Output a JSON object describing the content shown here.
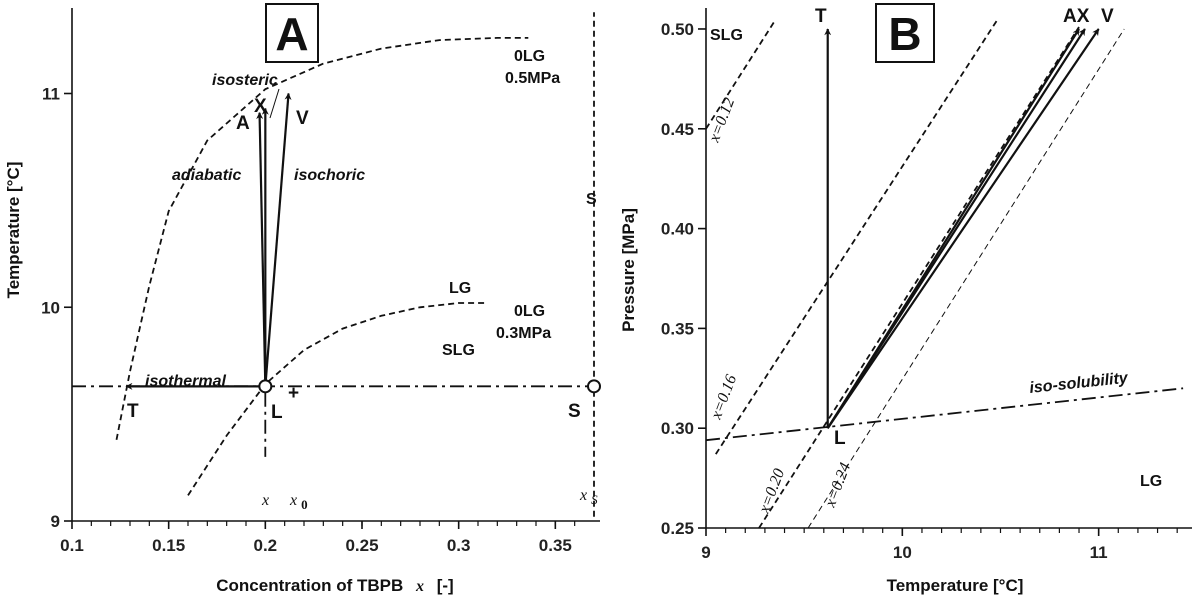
{
  "chart_data": [
    {
      "panel": "A",
      "type": "line",
      "xlabel_main": "Concentration of TBPB",
      "xlabel_var": "x",
      "xlabel_unit": "[-]",
      "ylabel": "Temperature [°C]",
      "xlim": [
        0.1,
        0.37
      ],
      "ylim": [
        9.0,
        11.4
      ],
      "xticks": [
        0.1,
        0.15,
        0.2,
        0.25,
        0.3,
        0.35
      ],
      "xtick_labels": [
        "0.1",
        "0.15",
        "0.2",
        "0.25",
        "0.3",
        "0.35"
      ],
      "yticks": [
        9,
        10,
        11
      ],
      "ytick_labels": [
        "9",
        "10",
        "11"
      ],
      "curves": [
        {
          "name": "0LG 0.5MPa",
          "style": "dashed",
          "x": [
            0.123,
            0.13,
            0.14,
            0.15,
            0.17,
            0.2,
            0.23,
            0.26,
            0.29,
            0.32,
            0.336
          ],
          "y": [
            9.38,
            9.7,
            10.1,
            10.45,
            10.78,
            11.02,
            11.14,
            11.21,
            11.25,
            11.26,
            11.26
          ]
        },
        {
          "name": "0LG 0.3MPa",
          "style": "dashed",
          "x": [
            0.16,
            0.18,
            0.2,
            0.22,
            0.24,
            0.26,
            0.28,
            0.3,
            0.315
          ],
          "y": [
            9.12,
            9.4,
            9.64,
            9.8,
            9.9,
            9.96,
            10.0,
            10.02,
            10.02
          ]
        },
        {
          "name": "xS",
          "style": "dashed",
          "x": [
            0.37,
            0.37
          ],
          "y": [
            9.02,
            11.38
          ]
        },
        {
          "name": "T-S line",
          "style": "dashdot",
          "x": [
            0.1,
            0.37
          ],
          "y": [
            9.63,
            9.63
          ]
        },
        {
          "name": "x drop",
          "style": "dashdot",
          "x": [
            0.2,
            0.2
          ],
          "y": [
            9.6,
            9.3
          ]
        }
      ],
      "arrows": [
        {
          "label": "isothermal",
          "from": [
            0.2,
            9.63
          ],
          "to": [
            0.128,
            9.63
          ]
        },
        {
          "label": "adiabatic",
          "from": [
            0.2,
            9.63
          ],
          "to": [
            0.197,
            10.91
          ]
        },
        {
          "label": "isosteric",
          "from": [
            0.2,
            9.63
          ],
          "to": [
            0.2,
            10.93
          ]
        },
        {
          "label": "isochoric",
          "from": [
            0.2,
            9.63
          ],
          "to": [
            0.212,
            11.0
          ]
        }
      ],
      "points": [
        {
          "label": "L",
          "x": 0.2,
          "y": 9.63,
          "marker": "circle"
        },
        {
          "label": "S",
          "x": 0.37,
          "y": 9.63,
          "marker": "circle"
        },
        {
          "label": "T",
          "x": 0.128,
          "y": 9.63
        },
        {
          "label": "A",
          "x": 0.197,
          "y": 10.91
        },
        {
          "label": "X",
          "x": 0.2,
          "y": 10.93
        },
        {
          "label": "V",
          "x": 0.212,
          "y": 11.0
        }
      ],
      "texts": {
        "panel_letter": "A",
        "iso_isothermal": "isothermal",
        "iso_adiabatic": "adiabatic",
        "iso_isosteric": "isosteric",
        "iso_isochoric": "isochoric",
        "pt_A": "A",
        "pt_X": "X",
        "pt_V": "V",
        "pt_T": "T",
        "pt_L": "L",
        "pt_S": "S",
        "region_S": "S",
        "region_LG": "LG",
        "region_SLG": "SLG",
        "label_0lg_top": "0LG",
        "label_05mpa": "0.5MPa",
        "label_0lg_bot": "0LG",
        "label_03mpa": "0.3MPa",
        "label_x": "x",
        "label_x0_base": "x",
        "label_x0_sub": "0",
        "label_xs_base": "x",
        "label_xs_sub": "S",
        "plus": "+"
      }
    },
    {
      "panel": "B",
      "type": "line",
      "xlabel": "Temperature  [°C]",
      "ylabel": "Pressure  [MPa]",
      "xlim": [
        9.0,
        11.45
      ],
      "ylim": [
        0.25,
        0.505
      ],
      "xticks": [
        9,
        10,
        11
      ],
      "xtick_labels": [
        "9",
        "10",
        "11"
      ],
      "yticks": [
        0.25,
        0.3,
        0.35,
        0.4,
        0.45,
        0.5
      ],
      "ytick_labels": [
        "0.25",
        "0.30",
        "0.35",
        "0.40",
        "0.45",
        "0.50"
      ],
      "curves": [
        {
          "name": "x=0.12",
          "style": "dashed",
          "x": [
            9.0,
            9.35
          ],
          "y": [
            0.45,
            0.504
          ]
        },
        {
          "name": "x=0.16",
          "style": "dashed",
          "x": [
            9.05,
            10.48
          ],
          "y": [
            0.287,
            0.504
          ]
        },
        {
          "name": "x=0.20",
          "style": "dashed",
          "x": [
            9.27,
            10.9
          ],
          "y": [
            0.25,
            0.501
          ]
        },
        {
          "name": "x=0.24",
          "style": "thin-dashed",
          "x": [
            9.52,
            11.13
          ],
          "y": [
            0.25,
            0.5
          ]
        },
        {
          "name": "iso-solubility",
          "style": "dashdot",
          "x": [
            9.0,
            11.43
          ],
          "y": [
            0.294,
            0.32
          ]
        }
      ],
      "arrows": [
        {
          "label": "T",
          "from": [
            9.62,
            0.3
          ],
          "to": [
            9.62,
            0.5
          ]
        },
        {
          "label": "A",
          "from": [
            9.62,
            0.3
          ],
          "to": [
            10.9,
            0.5
          ]
        },
        {
          "label": "X",
          "from": [
            9.62,
            0.3
          ],
          "to": [
            10.93,
            0.5
          ]
        },
        {
          "label": "V",
          "from": [
            9.62,
            0.3
          ],
          "to": [
            11.0,
            0.5
          ]
        }
      ],
      "points": [
        {
          "label": "L",
          "x": 9.62,
          "y": 0.3
        }
      ],
      "texts": {
        "panel_letter": "B",
        "pt_T": "T",
        "pt_AX": "AX",
        "pt_V": "V",
        "pt_L": "L",
        "region_SLG": "SLG",
        "region_LG": "LG",
        "iso_solubility": "iso-solubility",
        "x012": "x=0.12",
        "x016": "x=0.16",
        "x020": "x=0.20",
        "x024": "x=0.24"
      }
    }
  ]
}
